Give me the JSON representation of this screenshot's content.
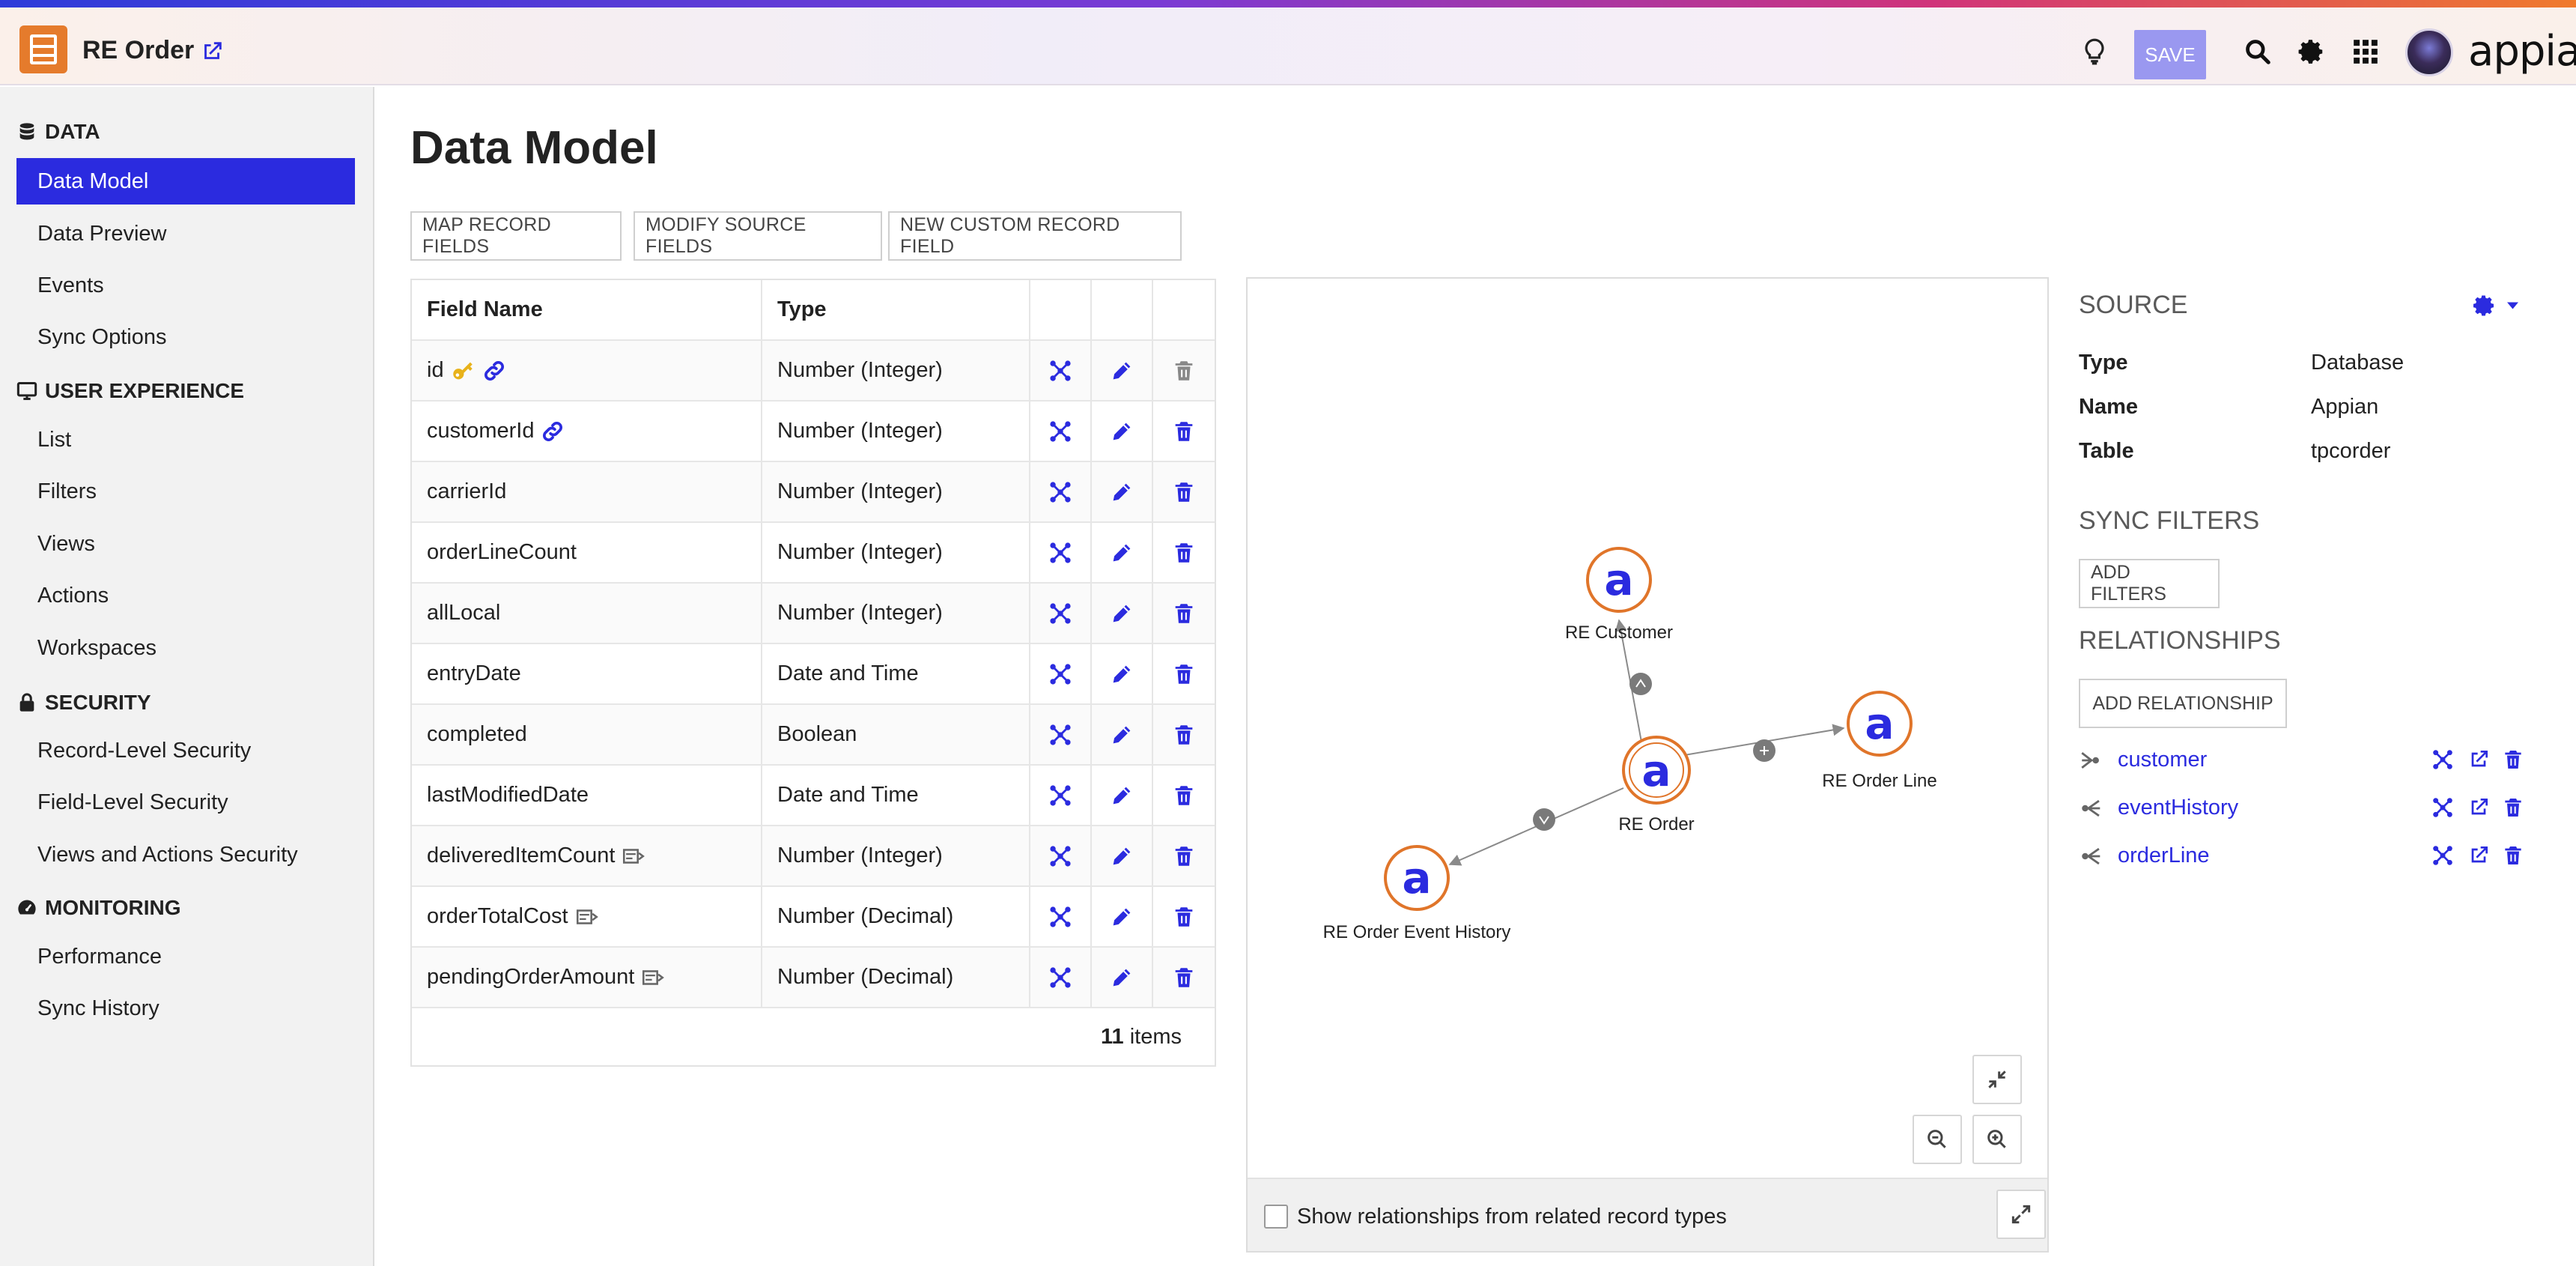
{
  "header": {
    "app_title": "RE Order",
    "save_label": "SAVE",
    "brand": "appian"
  },
  "sidebar": {
    "sections": [
      {
        "title": "DATA",
        "icon": "database-icon",
        "items": [
          "Data Model",
          "Data Preview",
          "Events",
          "Sync Options"
        ]
      },
      {
        "title": "USER EXPERIENCE",
        "icon": "monitor-icon",
        "items": [
          "List",
          "Filters",
          "Views",
          "Actions",
          "Workspaces"
        ]
      },
      {
        "title": "SECURITY",
        "icon": "lock-icon",
        "items": [
          "Record-Level Security",
          "Field-Level Security",
          "Views and Actions Security"
        ]
      },
      {
        "title": "MONITORING",
        "icon": "gauge-icon",
        "items": [
          "Performance",
          "Sync History"
        ]
      }
    ],
    "active_item": "Data Model"
  },
  "main": {
    "title": "Data Model",
    "toolbar": [
      "MAP RECORD FIELDS",
      "MODIFY SOURCE FIELDS",
      "NEW CUSTOM RECORD FIELD"
    ],
    "grid": {
      "headers": [
        "Field Name",
        "Type"
      ],
      "rows": [
        {
          "name": "id",
          "type": "Number (Integer)",
          "badges": [
            "key-icon",
            "link-icon"
          ],
          "delete_enabled": false
        },
        {
          "name": "customerId",
          "type": "Number (Integer)",
          "badges": [
            "link-icon"
          ],
          "delete_enabled": true
        },
        {
          "name": "carrierId",
          "type": "Number (Integer)",
          "badges": [],
          "delete_enabled": true
        },
        {
          "name": "orderLineCount",
          "type": "Number (Integer)",
          "badges": [],
          "delete_enabled": true
        },
        {
          "name": "allLocal",
          "type": "Number (Integer)",
          "badges": [],
          "delete_enabled": true
        },
        {
          "name": "entryDate",
          "type": "Date and Time",
          "badges": [],
          "delete_enabled": true
        },
        {
          "name": "completed",
          "type": "Boolean",
          "badges": [],
          "delete_enabled": true
        },
        {
          "name": "lastModifiedDate",
          "type": "Date and Time",
          "badges": [],
          "delete_enabled": true
        },
        {
          "name": "deliveredItemCount",
          "type": "Number (Integer)",
          "badges": [
            "custom-field-icon"
          ],
          "delete_enabled": true
        },
        {
          "name": "orderTotalCost",
          "type": "Number (Decimal)",
          "badges": [
            "custom-field-icon"
          ],
          "delete_enabled": true
        },
        {
          "name": "pendingOrderAmount",
          "type": "Number (Decimal)",
          "badges": [
            "custom-field-icon"
          ],
          "delete_enabled": true
        }
      ],
      "footer_count": "11",
      "footer_label": "items"
    },
    "diagram": {
      "nodes": [
        "RE Customer",
        "RE Order",
        "RE Order Line",
        "RE Order Event History"
      ],
      "node_glyph": "a",
      "show_related_label": "Show relationships from related record types",
      "show_related_checked": false
    },
    "panel": {
      "source_title": "SOURCE",
      "source": [
        {
          "key": "Type",
          "value": "Database"
        },
        {
          "key": "Name",
          "value": "Appian"
        },
        {
          "key": "Table",
          "value": "tpcorder"
        }
      ],
      "sync_filters_title": "SYNC FILTERS",
      "add_filters_label": "ADD FILTERS",
      "relationships_title": "RELATIONSHIPS",
      "add_relationship_label": "ADD RELATIONSHIP",
      "relationships": [
        {
          "name": "customer",
          "icon": "many-to-one-icon"
        },
        {
          "name": "eventHistory",
          "icon": "one-to-many-icon"
        },
        {
          "name": "orderLine",
          "icon": "one-to-many-icon"
        }
      ]
    }
  },
  "colors": {
    "accent": "#2b2bdf",
    "app_icon": "#e57b2c",
    "save_button": "#9a98f0",
    "node_ring": "#e0752a"
  }
}
